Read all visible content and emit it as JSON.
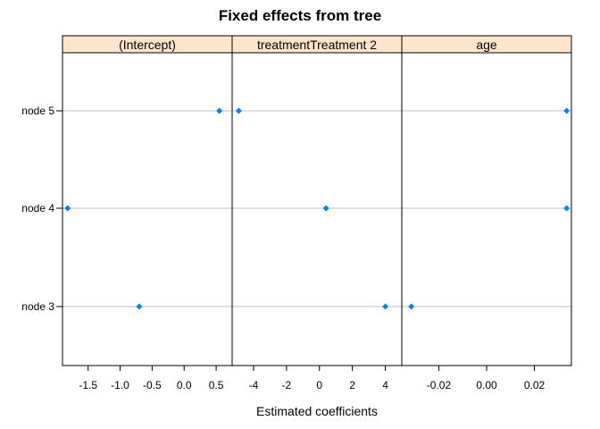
{
  "chart_data": {
    "type": "scatter",
    "title": "Fixed effects from tree",
    "xlabel": "Estimated coefficients",
    "ylabel": "",
    "strip_color": "#FFE5CC",
    "point_color": "#0080FF",
    "grid_color": "#C0C0C0",
    "categories": [
      "node 3",
      "node 4",
      "node 5"
    ],
    "panels": [
      {
        "name": "(Intercept)",
        "xlim": [
          -1.9,
          0.75
        ],
        "ticks": [
          -1.5,
          -1.0,
          -0.5,
          0.0,
          0.5
        ],
        "tick_labels": [
          "-1.5",
          "-1.0",
          "-0.5",
          "0.0",
          "0.5"
        ],
        "values": [
          -0.7,
          -1.82,
          0.55
        ]
      },
      {
        "name": "treatmentTreatment 2",
        "xlim": [
          -5.3,
          5.0
        ],
        "ticks": [
          -4,
          -2,
          0,
          2,
          4
        ],
        "tick_labels": [
          "-4",
          "-2",
          "0",
          "2",
          "4"
        ],
        "values": [
          4.0,
          0.4,
          -4.9
        ]
      },
      {
        "name": "age",
        "xlim": [
          -0.0355,
          0.0355
        ],
        "ticks": [
          -0.02,
          0.0,
          0.02
        ],
        "tick_labels": [
          "-0.02",
          "0.00",
          "0.02"
        ],
        "values": [
          -0.0315,
          0.0335,
          0.0335
        ]
      }
    ]
  }
}
